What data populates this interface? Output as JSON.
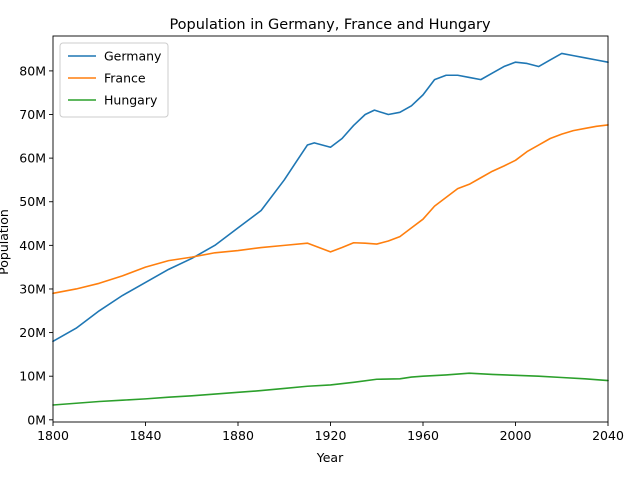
{
  "chart_data": {
    "type": "line",
    "title": "Population in Germany, France and Hungary",
    "xlabel": "Year",
    "ylabel": "Population",
    "xlim": [
      1800,
      2040
    ],
    "ylim": [
      -0.5,
      88
    ],
    "x_ticks": [
      1800,
      1840,
      1880,
      1920,
      1960,
      2000,
      2040
    ],
    "y_ticks": [
      {
        "value": 0,
        "label": "0M"
      },
      {
        "value": 10,
        "label": "10M"
      },
      {
        "value": 20,
        "label": "20M"
      },
      {
        "value": 30,
        "label": "30M"
      },
      {
        "value": 40,
        "label": "40M"
      },
      {
        "value": 50,
        "label": "50M"
      },
      {
        "value": 60,
        "label": "60M"
      },
      {
        "value": 70,
        "label": "70M"
      },
      {
        "value": 80,
        "label": "80M"
      }
    ],
    "y_unit": "millions",
    "grid": false,
    "legend_position": "top-left",
    "series": [
      {
        "name": "Germany",
        "color": "#1f77b4",
        "x": [
          1800,
          1810,
          1820,
          1830,
          1840,
          1850,
          1860,
          1870,
          1880,
          1890,
          1900,
          1905,
          1910,
          1913,
          1920,
          1925,
          1930,
          1935,
          1939,
          1945,
          1950,
          1955,
          1960,
          1965,
          1970,
          1975,
          1980,
          1985,
          1990,
          1995,
          2000,
          2005,
          2010,
          2015,
          2020,
          2025,
          2030,
          2035,
          2040
        ],
        "values": [
          18,
          21,
          25,
          28.5,
          31.5,
          34.5,
          37,
          40,
          44,
          48,
          55,
          59,
          63,
          63.5,
          62.5,
          64.5,
          67.5,
          70,
          71,
          70,
          70.5,
          72,
          74.5,
          78,
          79,
          79,
          78.5,
          78,
          79.5,
          81,
          82,
          81.7,
          81,
          82.5,
          84,
          83.5,
          83,
          82.5,
          82
        ]
      },
      {
        "name": "France",
        "color": "#ff7f0e",
        "x": [
          1800,
          1810,
          1820,
          1830,
          1840,
          1850,
          1860,
          1870,
          1880,
          1890,
          1900,
          1910,
          1915,
          1920,
          1925,
          1930,
          1935,
          1940,
          1945,
          1950,
          1955,
          1960,
          1965,
          1970,
          1975,
          1980,
          1985,
          1990,
          1995,
          2000,
          2005,
          2010,
          2015,
          2020,
          2025,
          2030,
          2035,
          2040
        ],
        "values": [
          29,
          30,
          31.3,
          33,
          35,
          36.5,
          37.3,
          38.3,
          38.8,
          39.5,
          40,
          40.5,
          39.5,
          38.5,
          39.5,
          40.6,
          40.5,
          40.3,
          41,
          42,
          44,
          46,
          49,
          51,
          53,
          54,
          55.5,
          57,
          58.2,
          59.5,
          61.5,
          63,
          64.5,
          65.5,
          66.3,
          66.8,
          67.3,
          67.6
        ]
      },
      {
        "name": "Hungary",
        "color": "#2ca02c",
        "x": [
          1800,
          1810,
          1820,
          1830,
          1840,
          1850,
          1860,
          1870,
          1880,
          1890,
          1900,
          1910,
          1920,
          1930,
          1940,
          1950,
          1955,
          1960,
          1970,
          1980,
          1990,
          2000,
          2010,
          2020,
          2030,
          2040
        ],
        "values": [
          3.4,
          3.8,
          4.2,
          4.5,
          4.8,
          5.2,
          5.5,
          5.9,
          6.3,
          6.7,
          7.2,
          7.7,
          8,
          8.6,
          9.3,
          9.4,
          9.8,
          10,
          10.3,
          10.7,
          10.4,
          10.2,
          10,
          9.7,
          9.4,
          9
        ]
      }
    ]
  }
}
